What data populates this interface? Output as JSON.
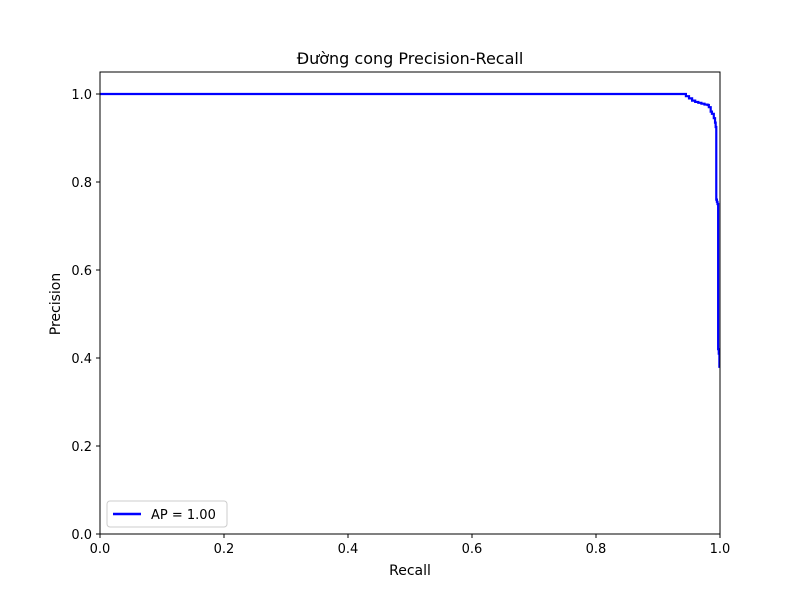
{
  "chart_data": {
    "type": "line",
    "title": "Đường cong Precision-Recall",
    "xlabel": "Recall",
    "ylabel": "Precision",
    "xlim": [
      0.0,
      1.0
    ],
    "ylim": [
      0.0,
      1.05
    ],
    "xticks": [
      0.0,
      0.2,
      0.4,
      0.6,
      0.8,
      1.0
    ],
    "yticks": [
      0.0,
      0.2,
      0.4,
      0.6,
      0.8,
      1.0
    ],
    "xtick_labels": [
      "0.0",
      "0.2",
      "0.4",
      "0.6",
      "0.8",
      "1.0"
    ],
    "ytick_labels": [
      "0.0",
      "0.2",
      "0.4",
      "0.6",
      "0.8",
      "1.0"
    ],
    "grid": false,
    "legend_position": "lower-left",
    "series": [
      {
        "name": "AP = 1.00",
        "color": "#0000ff",
        "step": true,
        "x": [
          0.0,
          0.94,
          0.945,
          0.95,
          0.955,
          0.96,
          0.965,
          0.97,
          0.975,
          0.98,
          0.982,
          0.985,
          0.987,
          0.99,
          0.992,
          0.993,
          0.994,
          0.995,
          0.996,
          0.997,
          0.998,
          0.999,
          1.0
        ],
        "y": [
          1.0,
          1.0,
          0.995,
          0.99,
          0.985,
          0.982,
          0.98,
          0.978,
          0.976,
          0.975,
          0.97,
          0.96,
          0.955,
          0.945,
          0.935,
          0.925,
          0.76,
          0.755,
          0.75,
          0.42,
          0.41,
          0.38,
          0.38
        ]
      }
    ]
  }
}
